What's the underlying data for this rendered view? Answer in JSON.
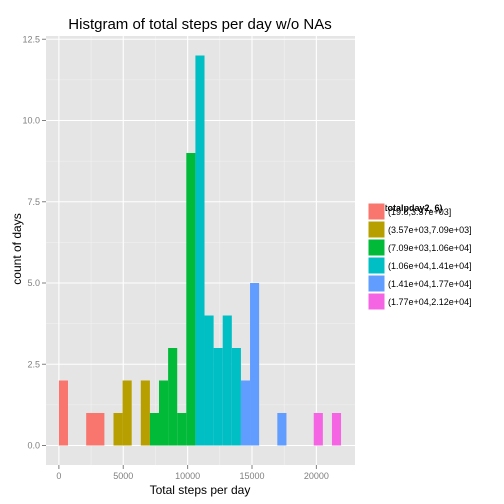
{
  "chart_data": {
    "type": "bar",
    "title": "Histgram of total steps per day w/o NAs",
    "xlabel": "Total steps per day",
    "ylabel": "count of days",
    "xlim": [
      -1000,
      23000
    ],
    "ylim": [
      -0.6,
      12.6
    ],
    "x_ticks": [
      0,
      5000,
      10000,
      15000,
      20000
    ],
    "x_tick_labels": [
      "0",
      "5000",
      "10000",
      "15000",
      "20000"
    ],
    "y_ticks": [
      0,
      2.5,
      5,
      7.5,
      10,
      12.5
    ],
    "y_tick_labels": [
      "0.0",
      "2.5",
      "5.0",
      "7.5",
      "10.0",
      "12.5"
    ],
    "grid": true,
    "legend_position": "right",
    "legend_title": "cut(totalpday2, 6)",
    "series": [
      {
        "name": "(19.8,3.57e+03]",
        "color": "#F8766D",
        "bins": [
          {
            "x0": 0,
            "x1": 707,
            "count": 2
          },
          {
            "x0": 2121,
            "x1": 3535,
            "count": 1
          }
        ]
      },
      {
        "name": "(3.57e+03,7.09e+03]",
        "color": "#B79F00",
        "bins": [
          {
            "x0": 4242,
            "x1": 4949,
            "count": 1
          },
          {
            "x0": 4949,
            "x1": 5656,
            "count": 2
          },
          {
            "x0": 6363,
            "x1": 7070,
            "count": 2
          }
        ]
      },
      {
        "name": "(7.09e+03,1.06e+04]",
        "color": "#00BA38",
        "bins": [
          {
            "x0": 7070,
            "x1": 7777,
            "count": 1
          },
          {
            "x0": 7777,
            "x1": 8484,
            "count": 2
          },
          {
            "x0": 8484,
            "x1": 9191,
            "count": 3
          },
          {
            "x0": 9191,
            "x1": 9898,
            "count": 1
          },
          {
            "x0": 9898,
            "x1": 10605,
            "count": 9
          }
        ]
      },
      {
        "name": "(1.06e+04,1.41e+04]",
        "color": "#00BFC4",
        "bins": [
          {
            "x0": 10605,
            "x1": 11312,
            "count": 12
          },
          {
            "x0": 11312,
            "x1": 12019,
            "count": 4
          },
          {
            "x0": 12019,
            "x1": 12726,
            "count": 3
          },
          {
            "x0": 12726,
            "x1": 13433,
            "count": 4
          },
          {
            "x0": 13433,
            "x1": 14140,
            "count": 3
          }
        ]
      },
      {
        "name": "(1.41e+04,1.77e+04]",
        "color": "#619CFF",
        "bins": [
          {
            "x0": 14140,
            "x1": 14847,
            "count": 2
          },
          {
            "x0": 14847,
            "x1": 15554,
            "count": 5
          },
          {
            "x0": 16968,
            "x1": 17675,
            "count": 1
          }
        ]
      },
      {
        "name": "(1.77e+04,2.12e+04]",
        "color": "#F564E3",
        "bins": [
          {
            "x0": 19796,
            "x1": 20503,
            "count": 1
          },
          {
            "x0": 21210,
            "x1": 21917,
            "count": 1
          }
        ]
      }
    ]
  }
}
